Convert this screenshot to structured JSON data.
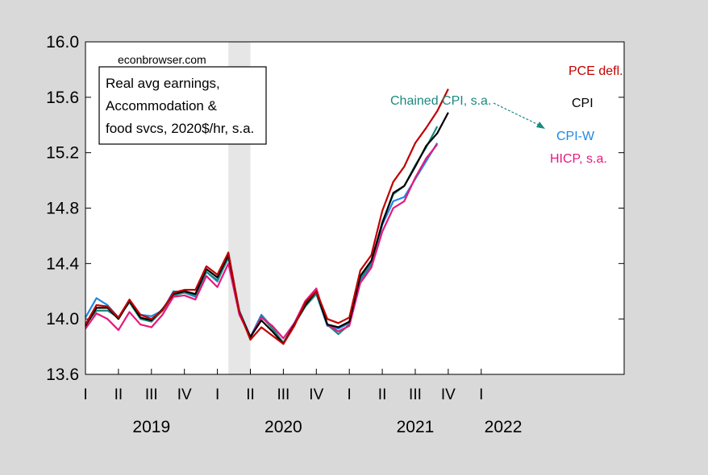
{
  "chart_data": {
    "type": "line",
    "source_label": "econbrowser.com",
    "title_lines": [
      "Real avg earnings,",
      "Accommodation &",
      "food svcs, 2020$/hr, s.a."
    ],
    "ylim": [
      13.6,
      16.0
    ],
    "yticks": [
      13.6,
      14.0,
      14.4,
      14.8,
      15.2,
      15.6,
      16.0
    ],
    "ytick_labels": [
      "13.6",
      "14.0",
      "14.4",
      "14.8",
      "15.2",
      "15.6",
      "16.0"
    ],
    "x_range_months": [
      0,
      49
    ],
    "quarter_ticks": [
      {
        "m": 0,
        "label": "I"
      },
      {
        "m": 3,
        "label": "II"
      },
      {
        "m": 6,
        "label": "III"
      },
      {
        "m": 9,
        "label": "IV"
      },
      {
        "m": 12,
        "label": "I"
      },
      {
        "m": 15,
        "label": "II"
      },
      {
        "m": 18,
        "label": "III"
      },
      {
        "m": 21,
        "label": "IV"
      },
      {
        "m": 24,
        "label": "I"
      },
      {
        "m": 27,
        "label": "II"
      },
      {
        "m": 30,
        "label": "III"
      },
      {
        "m": 33,
        "label": "IV"
      },
      {
        "m": 36,
        "label": "I"
      }
    ],
    "years": [
      {
        "m": 6,
        "label": "2019"
      },
      {
        "m": 18,
        "label": "2020"
      },
      {
        "m": 30,
        "label": "2021"
      },
      {
        "m": 38,
        "label": "2022"
      }
    ],
    "recession": [
      13,
      15
    ],
    "series": [
      {
        "name": "PCE defl.",
        "color": "#c00000",
        "values": [
          13.96,
          14.1,
          14.09,
          14.01,
          14.14,
          14.03,
          14.0,
          14.06,
          14.19,
          14.21,
          14.21,
          14.38,
          14.32,
          14.48,
          14.05,
          13.85,
          13.94,
          13.88,
          13.82,
          13.95,
          14.12,
          14.2,
          14.0,
          13.97,
          14.01,
          14.35,
          14.46,
          14.78,
          14.99,
          15.1,
          15.27,
          15.38,
          15.5,
          15.66
        ]
      },
      {
        "name": "CPI",
        "color": "#000000",
        "values": [
          13.95,
          14.08,
          14.08,
          14.0,
          14.13,
          14.01,
          13.99,
          14.07,
          14.18,
          14.2,
          14.18,
          14.36,
          14.3,
          14.46,
          14.05,
          13.87,
          13.99,
          13.91,
          13.82,
          13.96,
          14.1,
          14.2,
          13.96,
          13.94,
          13.98,
          14.31,
          14.42,
          14.69,
          14.91,
          14.96,
          15.1,
          15.25,
          15.34,
          15.49
        ]
      },
      {
        "name": "Chained CPI, s.a.",
        "color": "#1a8a80",
        "values": [
          13.96,
          14.06,
          14.06,
          14.01,
          14.12,
          14.0,
          13.98,
          14.06,
          14.17,
          14.19,
          14.17,
          14.34,
          14.28,
          14.44,
          14.04,
          13.86,
          14.02,
          13.93,
          13.83,
          13.96,
          14.09,
          14.18,
          13.96,
          13.89,
          13.96,
          14.29,
          14.4,
          14.7,
          14.9,
          14.96,
          15.11,
          15.24,
          15.39
        ]
      },
      {
        "name": "CPI-W",
        "color": "#1e88e5",
        "values": [
          14.01,
          14.15,
          14.1,
          14.01,
          14.13,
          14.03,
          14.02,
          14.06,
          14.2,
          14.19,
          14.16,
          14.34,
          14.27,
          14.45,
          14.06,
          13.87,
          14.03,
          13.94,
          13.82,
          13.97,
          14.1,
          14.18,
          13.95,
          13.93,
          13.97,
          14.28,
          14.39,
          14.68,
          14.85,
          14.88,
          15.01,
          15.14,
          15.27
        ]
      },
      {
        "name": "HICP, s.a.",
        "color": "#e6197d",
        "values": [
          13.93,
          14.04,
          14.0,
          13.92,
          14.05,
          13.96,
          13.94,
          14.03,
          14.16,
          14.17,
          14.14,
          14.31,
          14.23,
          14.4,
          14.03,
          13.87,
          14.01,
          13.95,
          13.86,
          13.97,
          14.13,
          14.22,
          13.96,
          13.91,
          13.95,
          14.26,
          14.37,
          14.63,
          14.8,
          14.85,
          15.02,
          15.16,
          15.26
        ]
      }
    ],
    "annotations": {
      "pce": "PCE defl.",
      "cpi": "CPI",
      "chained": "Chained CPI, s.a.",
      "cpiw": "CPI-W",
      "hicp": "HICP, s.a."
    }
  }
}
